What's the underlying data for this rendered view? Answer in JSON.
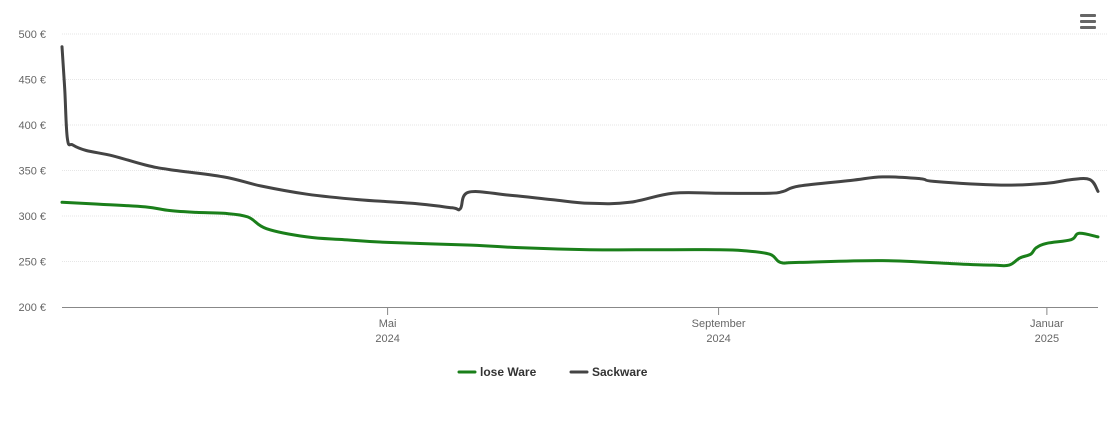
{
  "chart_data": {
    "type": "line",
    "title": "",
    "xlabel": "",
    "ylabel": "",
    "ylim": [
      200,
      500
    ],
    "y_ticks": [
      {
        "value": 200,
        "label": "200 €"
      },
      {
        "value": 250,
        "label": "250 €"
      },
      {
        "value": 300,
        "label": "300 €"
      },
      {
        "value": 350,
        "label": "350 €"
      },
      {
        "value": 400,
        "label": "400 €"
      },
      {
        "value": 450,
        "label": "450 €"
      },
      {
        "value": 500,
        "label": "500 €"
      }
    ],
    "x_range": [
      "2024-01-01",
      "2025-01-20"
    ],
    "x_ticks": [
      {
        "date": "2024-05-01",
        "month": "Mai",
        "year": "2024"
      },
      {
        "date": "2024-09-01",
        "month": "September",
        "year": "2024"
      },
      {
        "date": "2025-01-01",
        "month": "Januar",
        "year": "2025"
      }
    ],
    "grid": true,
    "legend_position": "bottom-center",
    "series": [
      {
        "name": "lose Ware",
        "color": "#1a7f1a",
        "points": [
          [
            "2024-01-01",
            315
          ],
          [
            "2024-01-15",
            313
          ],
          [
            "2024-02-01",
            310
          ],
          [
            "2024-02-10",
            306
          ],
          [
            "2024-02-20",
            304
          ],
          [
            "2024-03-01",
            303
          ],
          [
            "2024-03-10",
            299
          ],
          [
            "2024-03-17",
            286
          ],
          [
            "2024-04-01",
            277
          ],
          [
            "2024-04-15",
            274
          ],
          [
            "2024-05-01",
            271
          ],
          [
            "2024-06-01",
            268
          ],
          [
            "2024-06-20",
            265
          ],
          [
            "2024-07-15",
            263
          ],
          [
            "2024-08-15",
            263
          ],
          [
            "2024-09-01",
            263
          ],
          [
            "2024-09-10",
            262
          ],
          [
            "2024-09-20",
            258
          ],
          [
            "2024-09-24",
            249
          ],
          [
            "2024-10-01",
            249
          ],
          [
            "2024-11-01",
            251
          ],
          [
            "2024-12-01",
            247
          ],
          [
            "2024-12-12",
            246
          ],
          [
            "2024-12-18",
            246
          ],
          [
            "2024-12-22",
            254
          ],
          [
            "2024-12-26",
            258
          ],
          [
            "2024-12-28",
            265
          ],
          [
            "2025-01-01",
            270
          ],
          [
            "2025-01-10",
            274
          ],
          [
            "2025-01-13",
            281
          ],
          [
            "2025-01-20",
            277
          ]
        ]
      },
      {
        "name": "Sackware",
        "color": "#444444",
        "points": [
          [
            "2024-01-01",
            486
          ],
          [
            "2024-01-02",
            440
          ],
          [
            "2024-01-03",
            385
          ],
          [
            "2024-01-05",
            378
          ],
          [
            "2024-01-10",
            372
          ],
          [
            "2024-01-20",
            366
          ],
          [
            "2024-02-01",
            356
          ],
          [
            "2024-02-10",
            351
          ],
          [
            "2024-03-01",
            343
          ],
          [
            "2024-03-15",
            333
          ],
          [
            "2024-04-01",
            324
          ],
          [
            "2024-04-20",
            318
          ],
          [
            "2024-05-10",
            314
          ],
          [
            "2024-05-25",
            309
          ],
          [
            "2024-05-28",
            308
          ],
          [
            "2024-05-31",
            326
          ],
          [
            "2024-06-15",
            323
          ],
          [
            "2024-07-01",
            318
          ],
          [
            "2024-07-15",
            314
          ],
          [
            "2024-07-30",
            315
          ],
          [
            "2024-08-15",
            325
          ],
          [
            "2024-09-01",
            325
          ],
          [
            "2024-09-20",
            325
          ],
          [
            "2024-09-25",
            327
          ],
          [
            "2024-10-01",
            333
          ],
          [
            "2024-10-20",
            339
          ],
          [
            "2024-11-01",
            343
          ],
          [
            "2024-11-15",
            341
          ],
          [
            "2024-11-20",
            338
          ],
          [
            "2024-12-15",
            334
          ],
          [
            "2025-01-01",
            336
          ],
          [
            "2025-01-10",
            340
          ],
          [
            "2025-01-17",
            340
          ],
          [
            "2025-01-20",
            327
          ]
        ]
      }
    ]
  },
  "toolbar": {
    "menu_icon": "hamburger-menu-icon"
  }
}
